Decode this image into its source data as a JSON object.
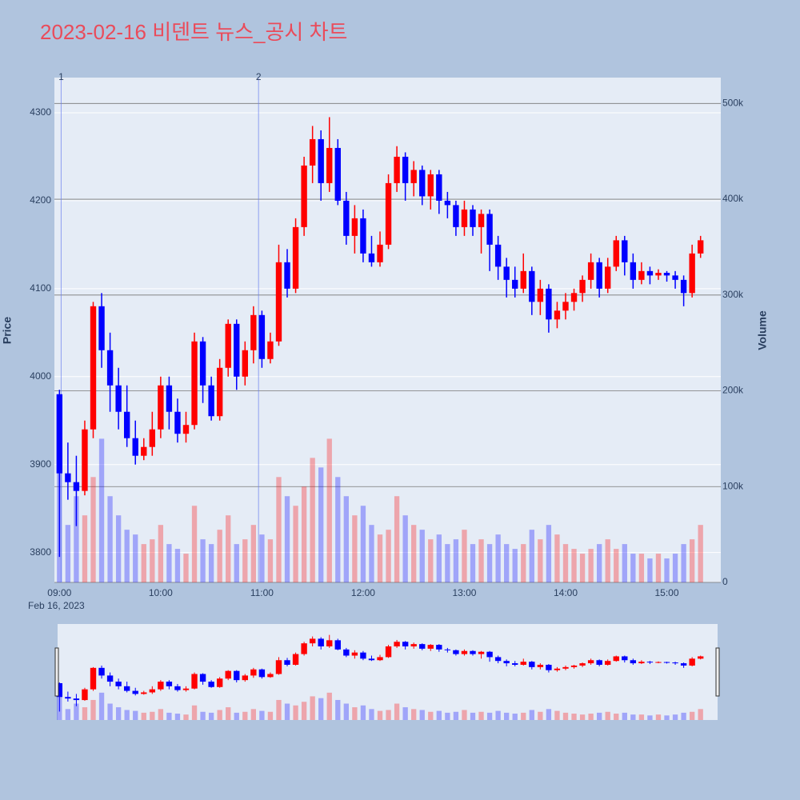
{
  "chart_data": {
    "type": "candlestick",
    "title": "2023-02-16 비덴트 뉴스_공시 차트",
    "y_label": "Price",
    "y2_label": "Volume",
    "x_date_label": "Feb 16, 2023",
    "increasing_color": "#ff0000",
    "decreasing_color": "#0000ff",
    "grid": true,
    "x": [
      "09:00",
      "09:05",
      "09:10",
      "09:15",
      "09:20",
      "09:25",
      "09:30",
      "09:35",
      "09:40",
      "09:45",
      "09:50",
      "09:55",
      "10:00",
      "10:05",
      "10:10",
      "10:15",
      "10:20",
      "10:25",
      "10:30",
      "10:35",
      "10:40",
      "10:45",
      "10:50",
      "10:55",
      "11:00",
      "11:05",
      "11:10",
      "11:15",
      "11:20",
      "11:25",
      "11:30",
      "11:35",
      "11:40",
      "11:45",
      "11:50",
      "11:55",
      "12:00",
      "12:05",
      "12:10",
      "12:15",
      "12:20",
      "12:25",
      "12:30",
      "12:35",
      "12:40",
      "12:45",
      "12:50",
      "12:55",
      "13:00",
      "13:05",
      "13:10",
      "13:15",
      "13:20",
      "13:25",
      "13:30",
      "13:35",
      "13:40",
      "13:45",
      "13:50",
      "13:55",
      "14:00",
      "14:05",
      "14:10",
      "14:15",
      "14:20",
      "14:25",
      "14:30",
      "14:35",
      "14:40",
      "14:45",
      "14:50",
      "14:55",
      "15:00",
      "15:05",
      "15:10",
      "15:15",
      "15:20"
    ],
    "open": [
      3980,
      3890,
      3880,
      3870,
      3940,
      4080,
      4030,
      3990,
      3960,
      3930,
      3910,
      3920,
      3940,
      3990,
      3960,
      3935,
      3945,
      4040,
      3990,
      3955,
      4010,
      4060,
      4000,
      4030,
      4070,
      4020,
      4040,
      4130,
      4100,
      4170,
      4240,
      4270,
      4220,
      4260,
      4200,
      4160,
      4180,
      4140,
      4130,
      4150,
      4220,
      4250,
      4220,
      4235,
      4205,
      4230,
      4200,
      4195,
      4170,
      4190,
      4170,
      4185,
      4150,
      4125,
      4110,
      4100,
      4120,
      4085,
      4100,
      4065,
      4075,
      4085,
      4095,
      4110,
      4130,
      4100,
      4125,
      4155,
      4130,
      4110,
      4120,
      4115,
      4118,
      4115,
      4110,
      4095,
      4140
    ],
    "high": [
      3985,
      3925,
      3910,
      3950,
      4085,
      4095,
      4050,
      4010,
      3990,
      3950,
      3930,
      3960,
      4000,
      4000,
      3975,
      3960,
      4050,
      4045,
      4000,
      4020,
      4065,
      4065,
      4040,
      4080,
      4075,
      4050,
      4150,
      4145,
      4180,
      4250,
      4285,
      4280,
      4295,
      4270,
      4210,
      4195,
      4190,
      4160,
      4165,
      4230,
      4262,
      4255,
      4245,
      4240,
      4235,
      4235,
      4210,
      4200,
      4200,
      4195,
      4190,
      4190,
      4160,
      4135,
      4125,
      4140,
      4125,
      4110,
      4105,
      4085,
      4095,
      4100,
      4115,
      4140,
      4135,
      4135,
      4160,
      4160,
      4140,
      4130,
      4125,
      4122,
      4120,
      4120,
      4115,
      4150,
      4160
    ],
    "low": [
      3795,
      3860,
      3830,
      3865,
      3930,
      4010,
      3960,
      3940,
      3920,
      3900,
      3905,
      3910,
      3930,
      3940,
      3925,
      3925,
      3940,
      3970,
      3950,
      3950,
      4000,
      3985,
      3990,
      4015,
      4010,
      4015,
      4035,
      4090,
      4095,
      4160,
      4220,
      4200,
      4210,
      4195,
      4150,
      4140,
      4130,
      4125,
      4125,
      4145,
      4210,
      4200,
      4205,
      4195,
      4190,
      4185,
      4180,
      4160,
      4160,
      4160,
      4140,
      4120,
      4110,
      4090,
      4090,
      4095,
      4070,
      4070,
      4050,
      4055,
      4065,
      4075,
      4085,
      4100,
      4090,
      4095,
      4120,
      4115,
      4100,
      4105,
      4105,
      4110,
      4108,
      4100,
      4080,
      4090,
      4135
    ],
    "close": [
      3890,
      3880,
      3870,
      3940,
      4080,
      4030,
      3990,
      3960,
      3930,
      3910,
      3920,
      3940,
      3990,
      3960,
      3935,
      3945,
      4040,
      3990,
      3955,
      4010,
      4060,
      4000,
      4030,
      4070,
      4020,
      4040,
      4130,
      4100,
      4170,
      4240,
      4270,
      4220,
      4260,
      4200,
      4160,
      4180,
      4140,
      4130,
      4150,
      4220,
      4250,
      4220,
      4235,
      4205,
      4230,
      4200,
      4195,
      4170,
      4190,
      4170,
      4185,
      4150,
      4125,
      4110,
      4100,
      4120,
      4085,
      4100,
      4065,
      4075,
      4085,
      4095,
      4110,
      4130,
      4100,
      4125,
      4155,
      4130,
      4110,
      4120,
      4115,
      4118,
      4115,
      4110,
      4095,
      4140,
      4155
    ],
    "volume": [
      180000,
      60000,
      90000,
      70000,
      110000,
      150000,
      90000,
      70000,
      55000,
      50000,
      40000,
      45000,
      60000,
      40000,
      35000,
      30000,
      80000,
      45000,
      40000,
      55000,
      70000,
      40000,
      45000,
      60000,
      50000,
      45000,
      110000,
      90000,
      80000,
      100000,
      130000,
      120000,
      150000,
      110000,
      90000,
      70000,
      80000,
      60000,
      50000,
      55000,
      90000,
      70000,
      60000,
      55000,
      45000,
      50000,
      40000,
      45000,
      55000,
      40000,
      45000,
      40000,
      50000,
      40000,
      35000,
      40000,
      55000,
      45000,
      60000,
      50000,
      40000,
      35000,
      30000,
      35000,
      40000,
      45000,
      35000,
      40000,
      30000,
      30000,
      25000,
      30000,
      25000,
      30000,
      40000,
      45000,
      60000
    ],
    "xlim": [
      "08:57",
      "15:32"
    ],
    "xticks": [
      "09:00",
      "10:00",
      "11:00",
      "12:00",
      "13:00",
      "14:00",
      "15:00"
    ],
    "ylim": [
      3766,
      4340
    ],
    "yticks": [
      3800,
      3900,
      4000,
      4100,
      4200,
      4300
    ],
    "y2lim": [
      0,
      527000
    ],
    "y2ticks": [
      0,
      {
        "value": 100000,
        "label": "100k"
      },
      {
        "value": 200000,
        "label": "200k"
      },
      {
        "value": 300000,
        "label": "300k"
      },
      {
        "value": 400000,
        "label": "400k"
      },
      {
        "value": 500000,
        "label": "500k"
      }
    ],
    "annotations": [
      {
        "x": "09:01",
        "text": "1"
      },
      {
        "x": "10:58",
        "text": "2"
      }
    ]
  }
}
